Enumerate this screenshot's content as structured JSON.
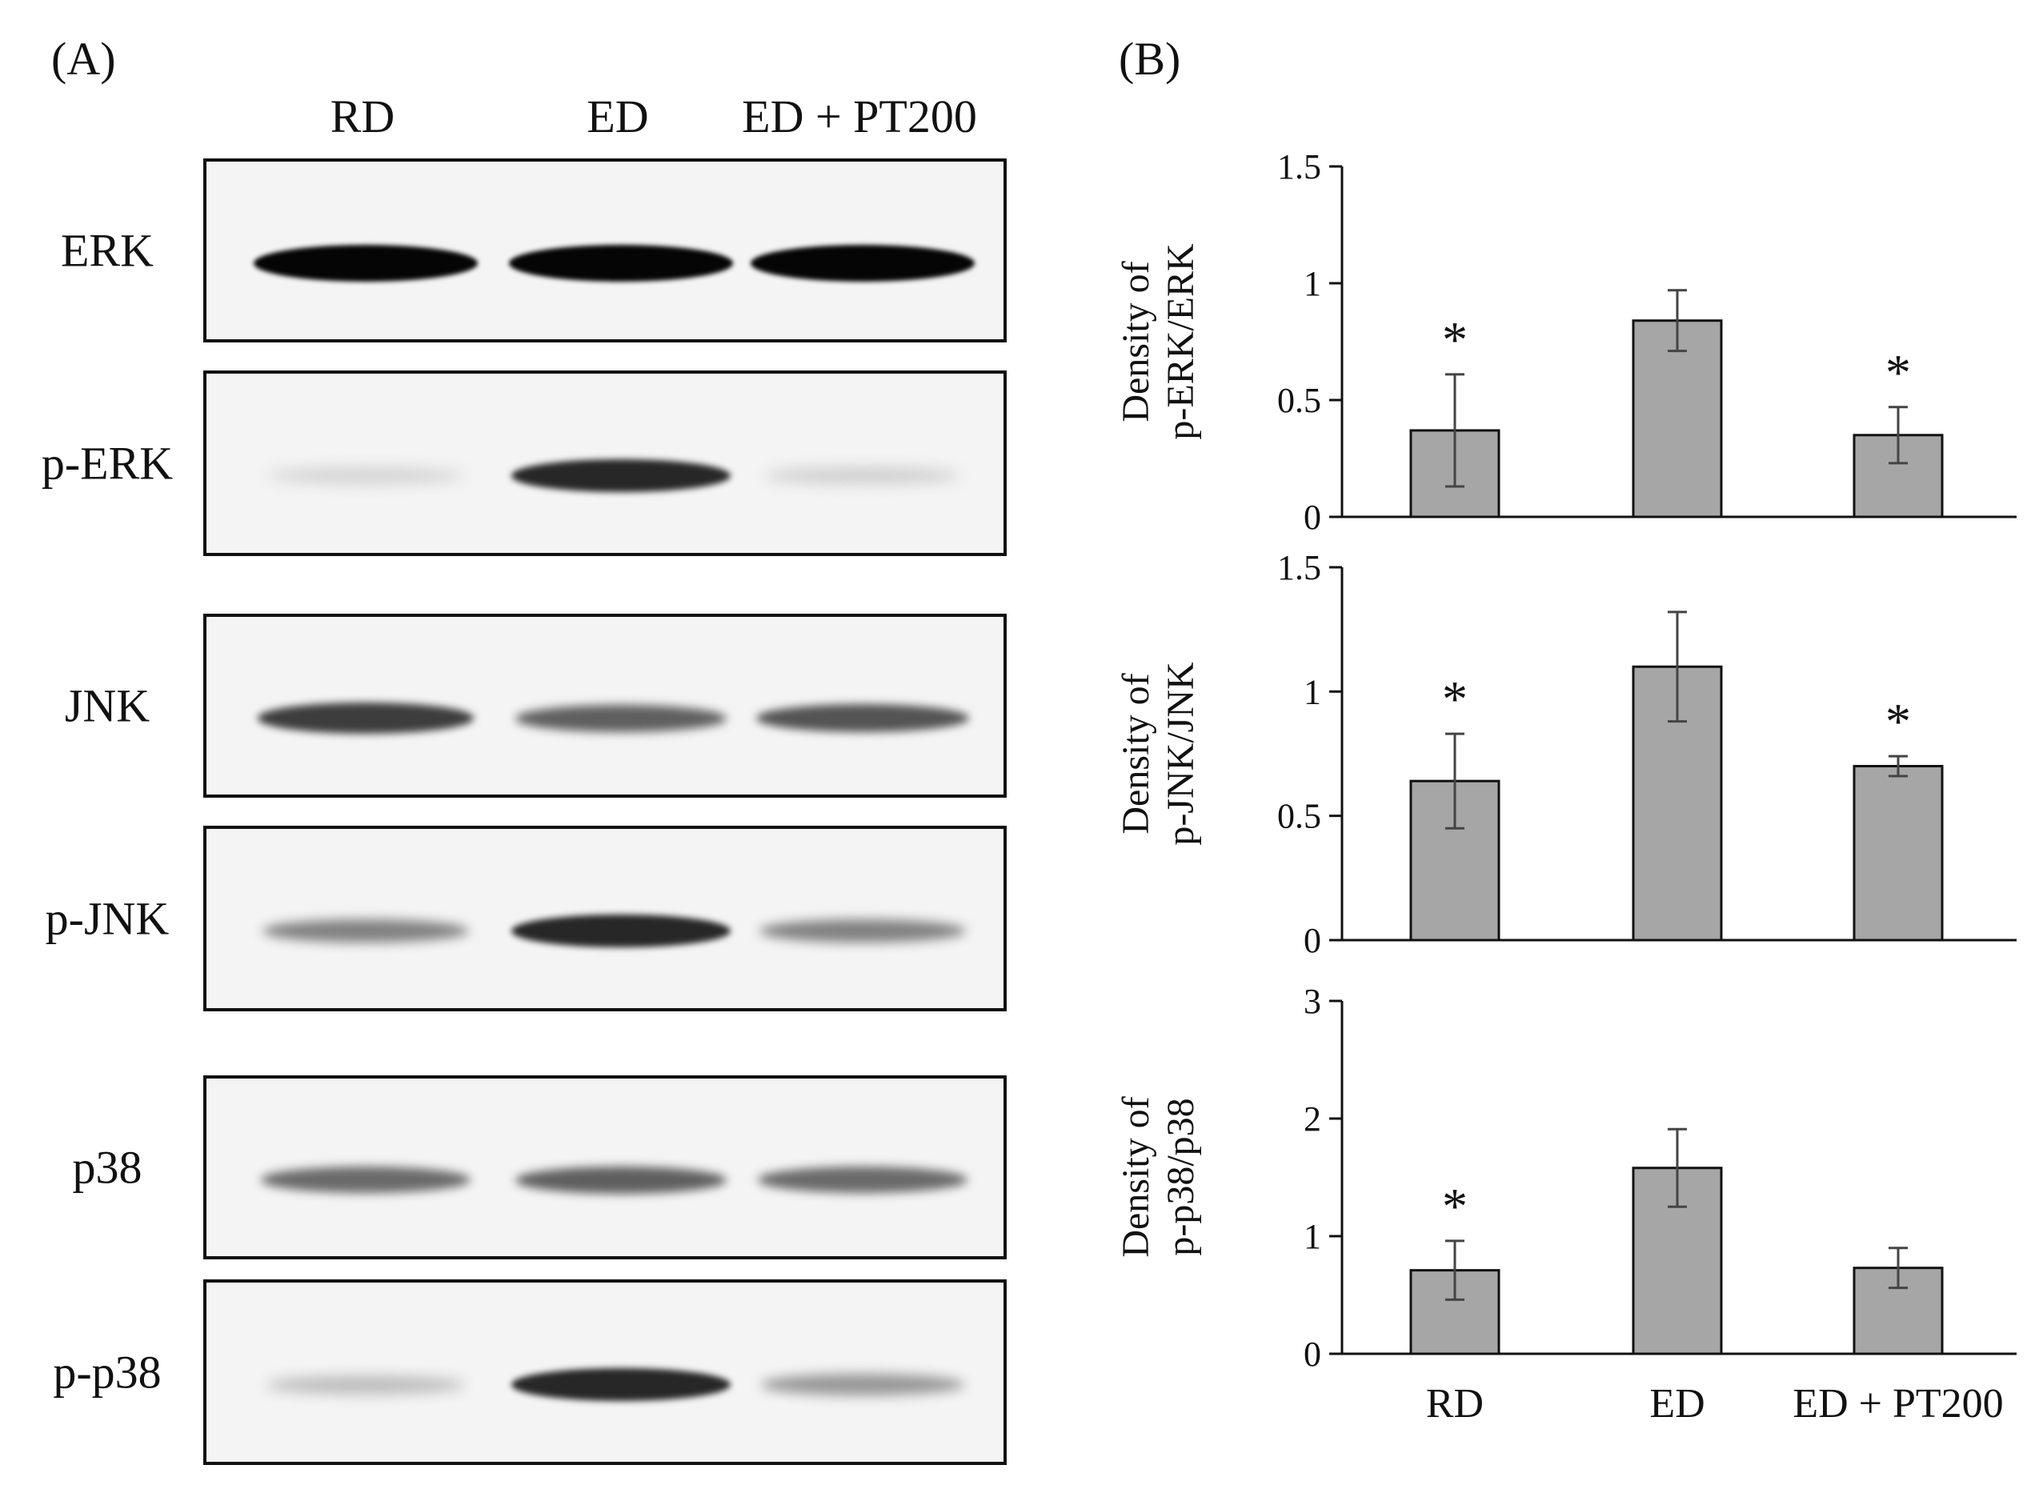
{
  "panels": {
    "a": "(A)",
    "b": "(B)"
  },
  "lanes": [
    "RD",
    "ED",
    "ED + PT200"
  ],
  "blots": [
    {
      "label": "ERK",
      "intensity": [
        1.0,
        1.0,
        1.0
      ]
    },
    {
      "label": "p-ERK",
      "intensity": [
        0.1,
        0.85,
        0.12
      ]
    },
    {
      "label": "JNK",
      "intensity": [
        0.75,
        0.6,
        0.65
      ]
    },
    {
      "label": "p-JNK",
      "intensity": [
        0.45,
        0.85,
        0.45
      ]
    },
    {
      "label": "p38",
      "intensity": [
        0.55,
        0.6,
        0.55
      ]
    },
    {
      "label": "p-p38",
      "intensity": [
        0.2,
        0.85,
        0.35
      ]
    }
  ],
  "chart_data": [
    {
      "type": "bar",
      "categories": [
        "RD",
        "ED",
        "ED + PT200"
      ],
      "values": [
        0.37,
        0.84,
        0.35
      ],
      "errors": [
        0.24,
        0.13,
        0.12
      ],
      "significance": [
        "*",
        "",
        "*"
      ],
      "ylabel": [
        "Density of",
        "p-ERK/ERK"
      ],
      "ylim": [
        0,
        1.5
      ],
      "yticks": [
        "0",
        "0.5",
        "1",
        "1.5"
      ],
      "ytick_values": [
        0,
        0.5,
        1,
        1.5
      ],
      "bar_color": "#a6a6a6"
    },
    {
      "type": "bar",
      "categories": [
        "RD",
        "ED",
        "ED + PT200"
      ],
      "values": [
        0.64,
        1.1,
        0.7
      ],
      "errors": [
        0.19,
        0.22,
        0.04
      ],
      "significance": [
        "*",
        "",
        "*"
      ],
      "ylabel": [
        "Density of",
        "p-JNK/JNK"
      ],
      "ylim": [
        0,
        1.5
      ],
      "yticks": [
        "0",
        "0.5",
        "1",
        "1.5"
      ],
      "ytick_values": [
        0,
        0.5,
        1,
        1.5
      ],
      "bar_color": "#a6a6a6"
    },
    {
      "type": "bar",
      "categories": [
        "RD",
        "ED",
        "ED + PT200"
      ],
      "values": [
        0.71,
        1.58,
        0.73
      ],
      "errors": [
        0.25,
        0.33,
        0.17
      ],
      "significance": [
        "*",
        "",
        ""
      ],
      "ylabel": [
        "Density of",
        "p-p38/p38"
      ],
      "ylim": [
        0,
        3
      ],
      "yticks": [
        "0",
        "1",
        "2",
        "3"
      ],
      "ytick_values": [
        0,
        1,
        2,
        3
      ],
      "bar_color": "#a6a6a6"
    }
  ]
}
